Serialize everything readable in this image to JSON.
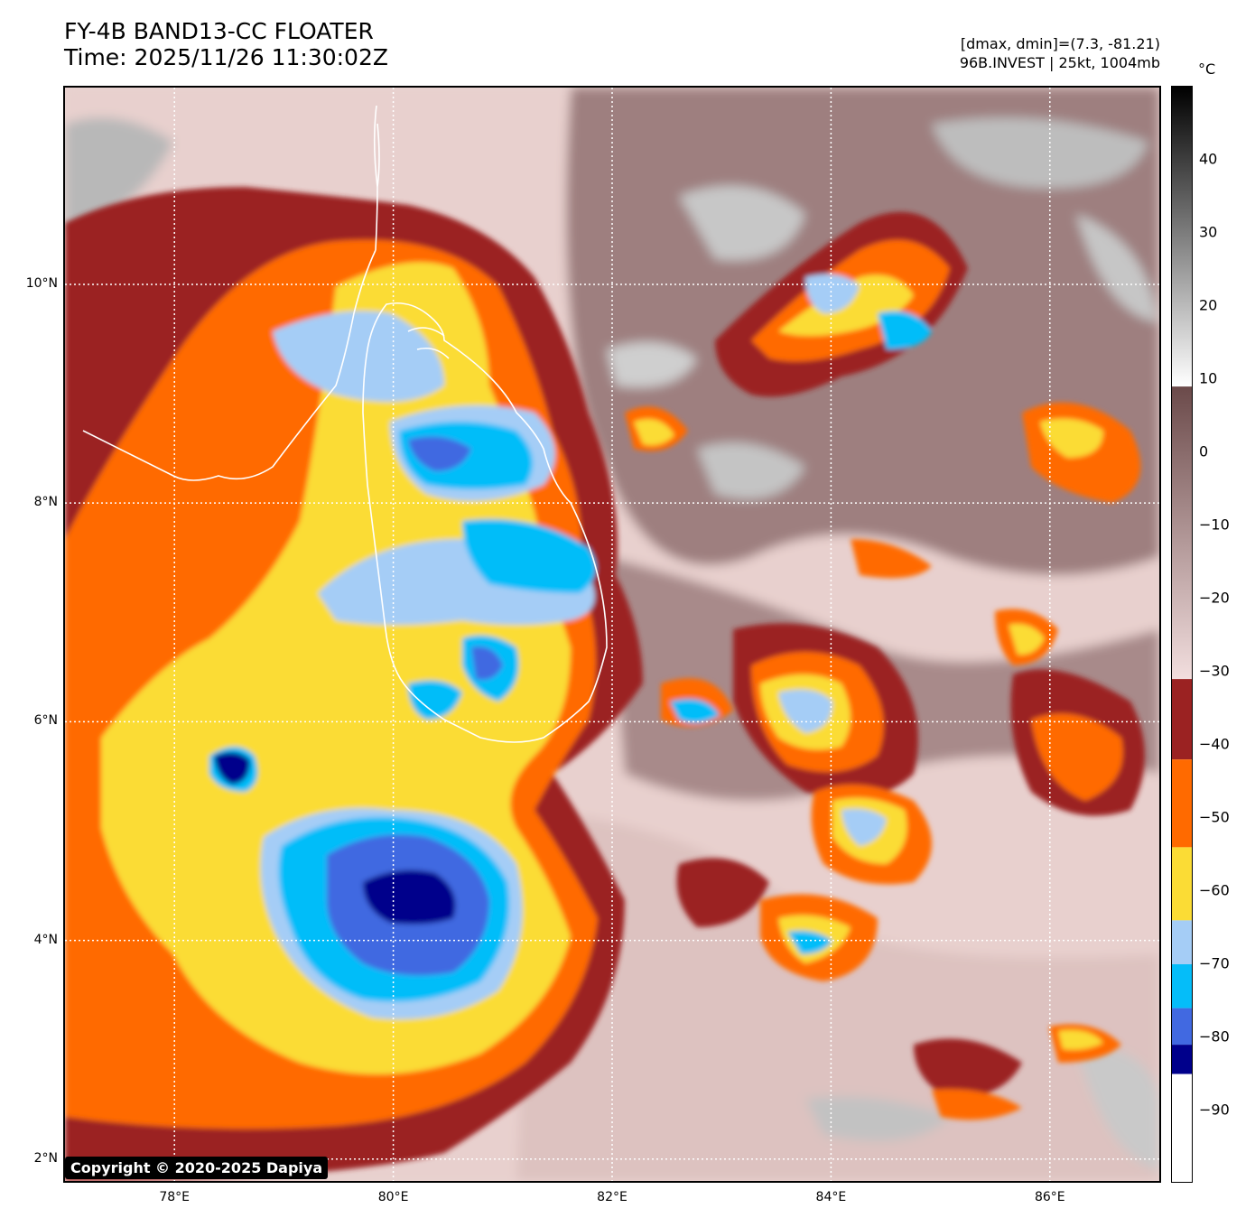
{
  "header": {
    "title_line1": "FY-4B BAND13-CC FLOATER",
    "title_line2": "Time: 2025/11/26 11:30:02Z",
    "info_line1": "[dmax, dmin]=(7.3, -81.21)",
    "info_line2": "96B.INVEST | 25kt, 1004mb"
  },
  "map": {
    "lon_range": [
      77.0,
      87.0
    ],
    "lat_range": [
      1.8,
      11.8
    ],
    "lon_ticks": [
      {
        "value": 78,
        "label": "78°E"
      },
      {
        "value": 80,
        "label": "80°E"
      },
      {
        "value": 82,
        "label": "82°E"
      },
      {
        "value": 84,
        "label": "84°E"
      },
      {
        "value": 86,
        "label": "86°E"
      }
    ],
    "lat_ticks": [
      {
        "value": 10,
        "label": "10°N"
      },
      {
        "value": 8,
        "label": "8°N"
      },
      {
        "value": 6,
        "label": "6°N"
      },
      {
        "value": 4,
        "label": "4°N"
      },
      {
        "value": 2,
        "label": "2°N"
      }
    ],
    "gridlines": true,
    "coastline_color": "#ffffff",
    "copyright": "Copyright © 2020-2025 Dapiya"
  },
  "colorbar": {
    "unit": "°C",
    "range": [
      -100,
      50
    ],
    "ticks": [
      {
        "value": 40,
        "label": "40"
      },
      {
        "value": 30,
        "label": "30"
      },
      {
        "value": 20,
        "label": "20"
      },
      {
        "value": 10,
        "label": "10"
      },
      {
        "value": 0,
        "label": "0"
      },
      {
        "value": -10,
        "label": "−10"
      },
      {
        "value": -20,
        "label": "−20"
      },
      {
        "value": -30,
        "label": "−30"
      },
      {
        "value": -40,
        "label": "−40"
      },
      {
        "value": -50,
        "label": "−50"
      },
      {
        "value": -60,
        "label": "−60"
      },
      {
        "value": -70,
        "label": "−70"
      },
      {
        "value": -80,
        "label": "−80"
      },
      {
        "value": -90,
        "label": "−90"
      }
    ],
    "bands": [
      {
        "from": 9,
        "to": 50,
        "colors": [
          "#ffffff",
          "#000000"
        ]
      },
      {
        "from": -31,
        "to": 9,
        "colors": [
          "#f2dede",
          "#6b4a4a"
        ]
      },
      {
        "from": -42,
        "to": -31,
        "colors": [
          "#9b2222",
          "#9b2222"
        ]
      },
      {
        "from": -54,
        "to": -42,
        "colors": [
          "#ff6a00",
          "#ff6a00"
        ]
      },
      {
        "from": -64,
        "to": -54,
        "colors": [
          "#fbdc35",
          "#fbdc35"
        ]
      },
      {
        "from": -70,
        "to": -64,
        "colors": [
          "#a5cdf6",
          "#a5cdf6"
        ]
      },
      {
        "from": -76,
        "to": -70,
        "colors": [
          "#05bdf9",
          "#05bdf9"
        ]
      },
      {
        "from": -81,
        "to": -76,
        "colors": [
          "#4169e1",
          "#4169e1"
        ]
      },
      {
        "from": -85,
        "to": -81,
        "colors": [
          "#00008b",
          "#00008b"
        ]
      },
      {
        "from": -100,
        "to": -85,
        "colors": [
          "#ffffff",
          "#ffffff"
        ]
      }
    ]
  }
}
